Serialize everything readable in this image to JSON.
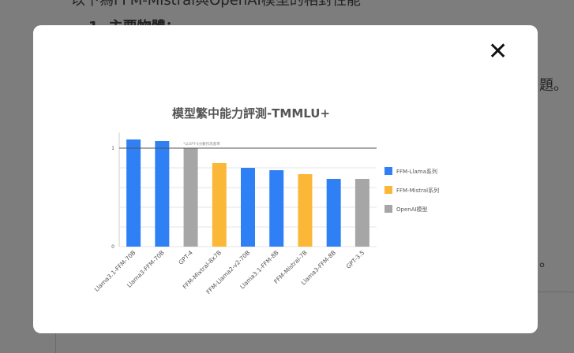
{
  "background": {
    "lines": [
      "以下為FFM-Mistral與OpenAI模型的相對性能",
      "1. 主要物體：",
      "題。",
      "。"
    ]
  },
  "modal": {
    "close": "✕"
  },
  "chart_data": {
    "type": "bar",
    "title": "模型繁中能力評測-TMMLU+",
    "categories": [
      "Llama3.1-FFM-70B",
      "Llama3-FFM-70B",
      "GPT-4",
      "FFM-Mixtral-8x7B",
      "FFM-Llama2-v2-70B",
      "Llama3.1-FFM-8B",
      "FFM-Mistral-7B",
      "Llama3-FFM-8B",
      "GPT-3.5"
    ],
    "values": [
      1.088,
      1.072,
      1.0,
      0.848,
      0.8,
      0.776,
      0.736,
      0.688,
      0.688
    ],
    "colors": [
      "#2f7ff5",
      "#2f7ff5",
      "#a6a6a6",
      "#fbb838",
      "#2f7ff5",
      "#2f7ff5",
      "#fbb838",
      "#2f7ff5",
      "#a6a6a6"
    ],
    "legend": [
      {
        "name": "FFM-Llama系列",
        "color": "#2f7ff5"
      },
      {
        "name": "FFM-Mistral系列",
        "color": "#fbb838"
      },
      {
        "name": "OpenAI模型",
        "color": "#a6a6a6"
      }
    ],
    "legend_position": "right",
    "ylim": [
      0,
      1.16
    ],
    "yticks": [
      0,
      1
    ],
    "ygrid": [
      0.2,
      0.4,
      0.6,
      0.8
    ],
    "reference_line": {
      "value": 1,
      "label": "*以GPT-4分數作為基準"
    }
  }
}
